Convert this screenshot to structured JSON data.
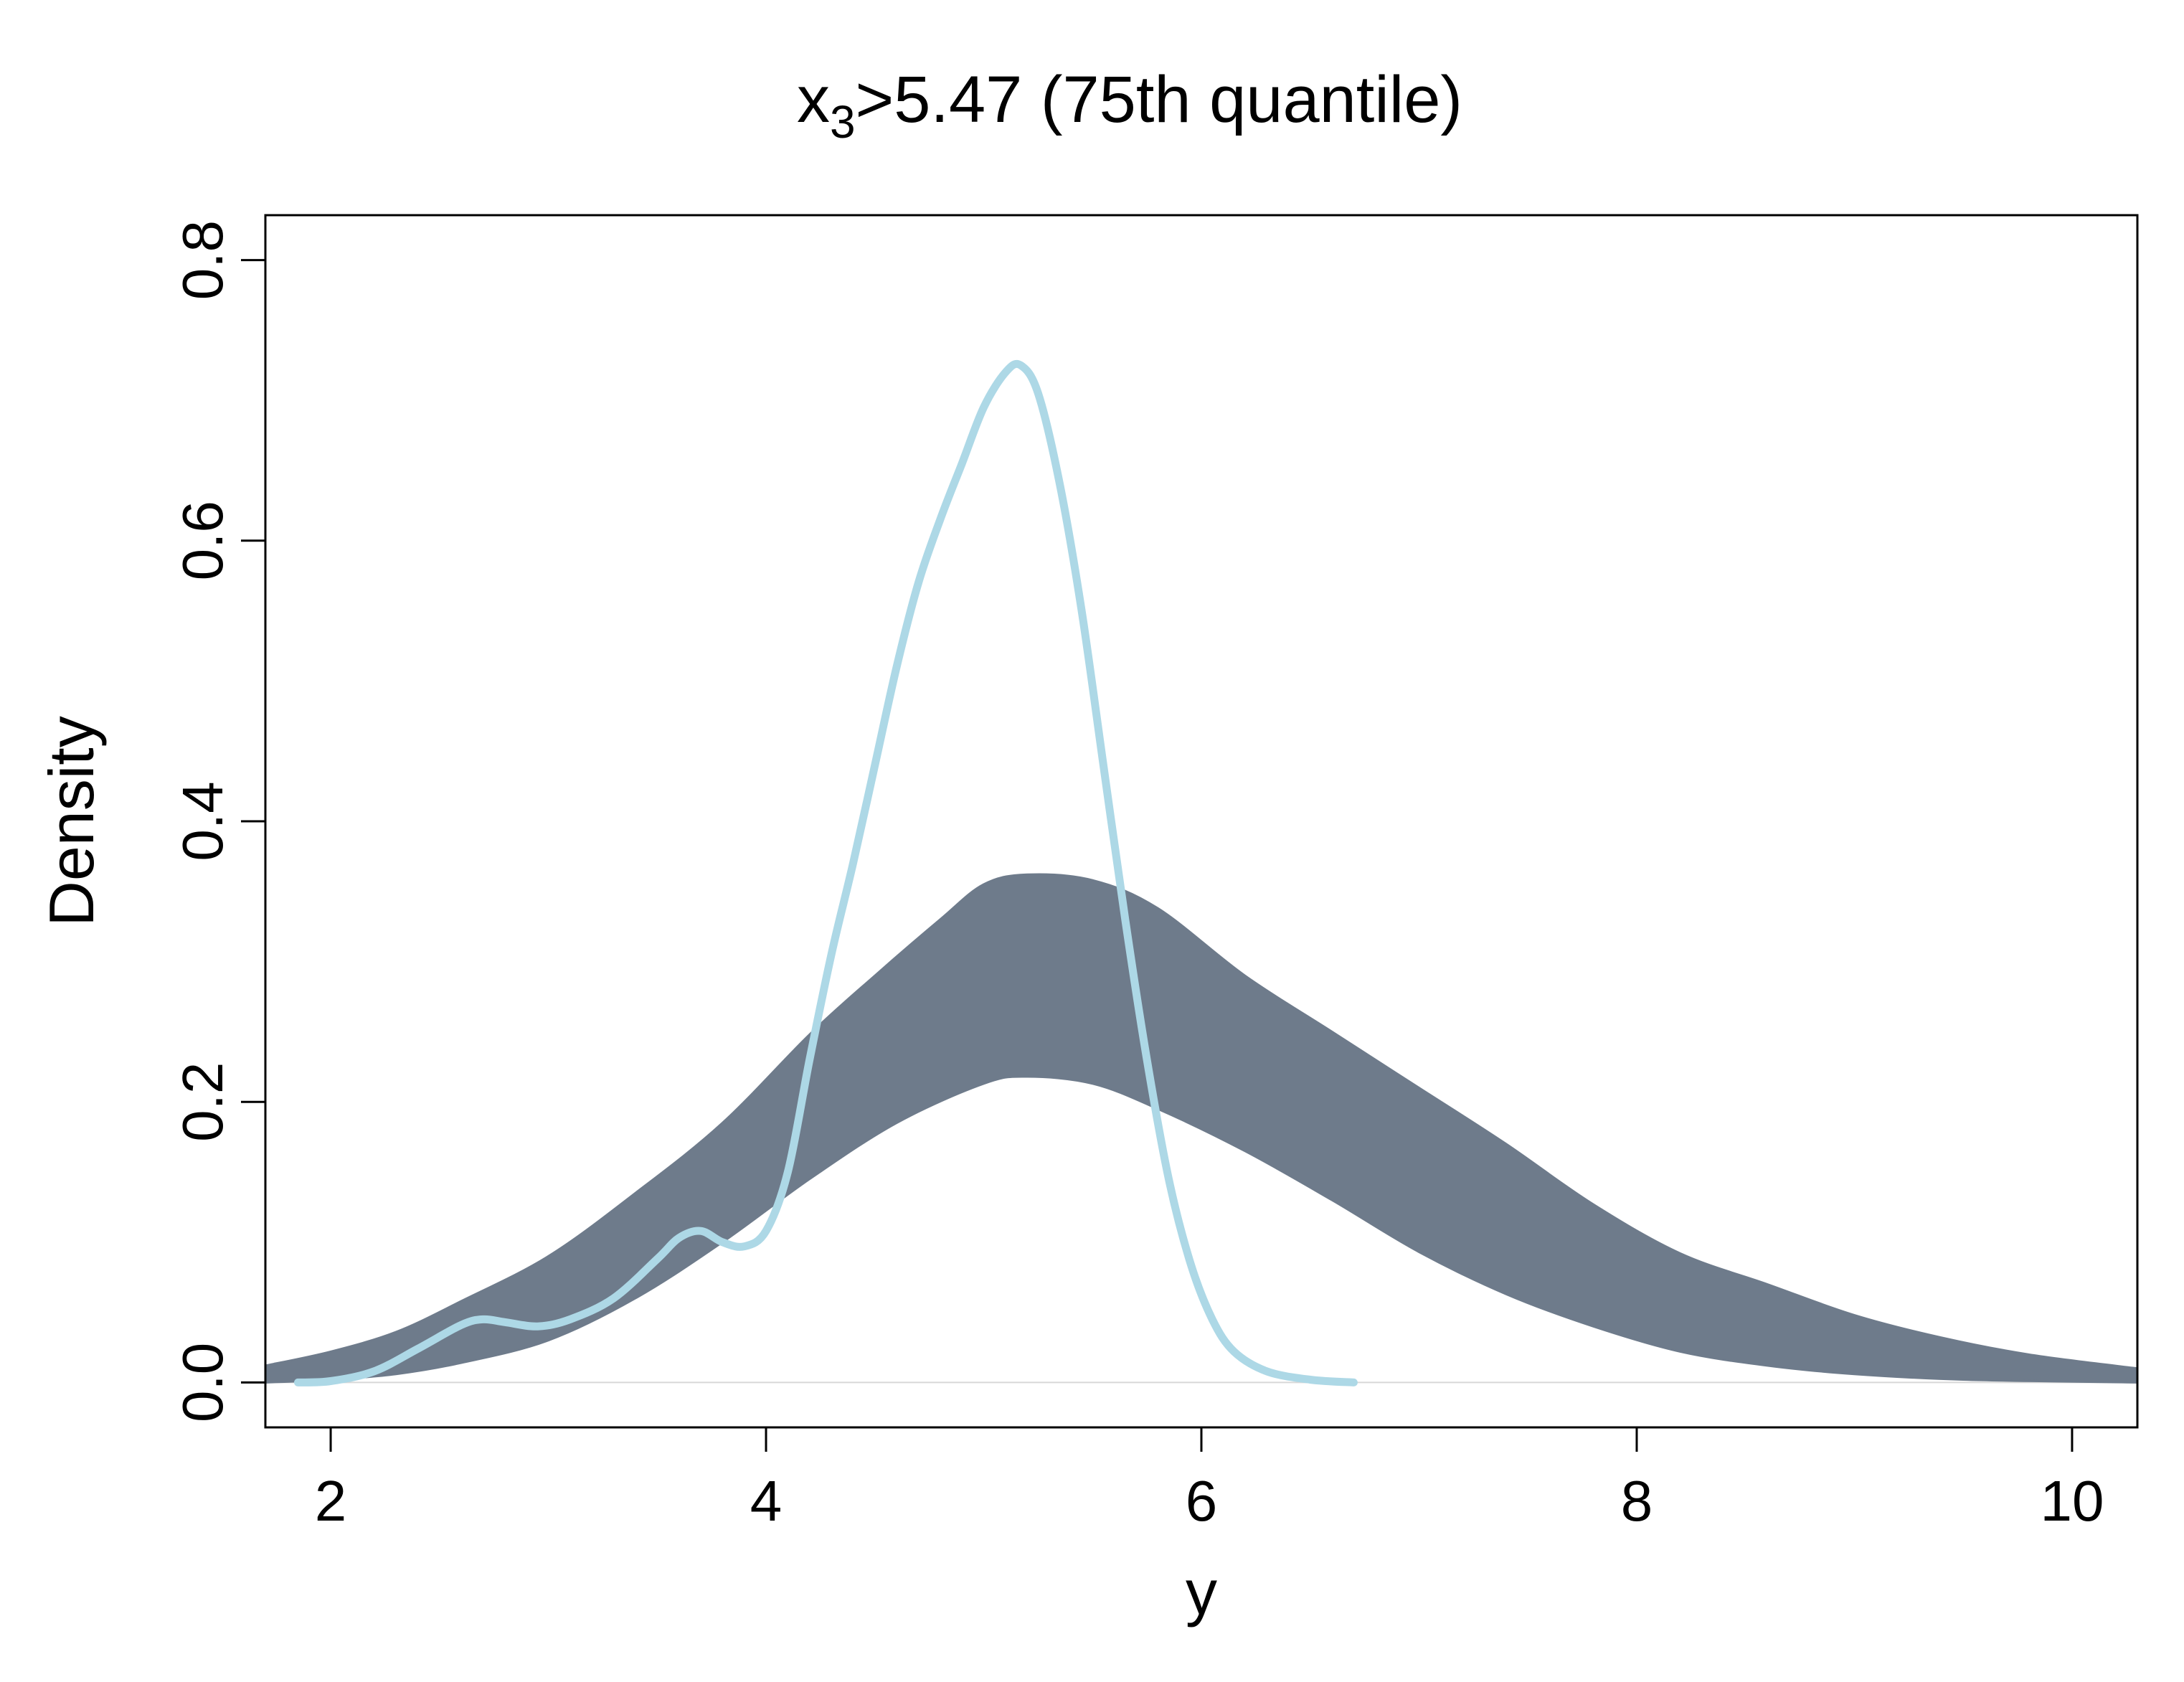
{
  "chart_data": {
    "type": "line",
    "title": {
      "main": "x",
      "subscript": "3",
      "rest": ">5.47 (75th quantile)"
    },
    "xlabel": "y",
    "ylabel": "Density",
    "xlim": [
      1.7,
      10.3
    ],
    "ylim": [
      -0.032,
      0.832
    ],
    "x_ticks": [
      2,
      4,
      6,
      8,
      10
    ],
    "y_ticks": [
      0.0,
      0.2,
      0.4,
      0.6,
      0.8
    ],
    "x_tick_labels": [
      "2",
      "4",
      "6",
      "8",
      "10"
    ],
    "y_tick_labels": [
      "0.0",
      "0.2",
      "0.4",
      "0.6",
      "0.8"
    ],
    "grid": false,
    "series": [
      {
        "role": "replicated densities (band)",
        "color": "#6e7b8b",
        "upper": [
          [
            1.7,
            0.012
          ],
          [
            2.0,
            0.022
          ],
          [
            2.3,
            0.036
          ],
          [
            2.6,
            0.058
          ],
          [
            3.0,
            0.09
          ],
          [
            3.4,
            0.135
          ],
          [
            3.8,
            0.185
          ],
          [
            4.2,
            0.248
          ],
          [
            4.5,
            0.29
          ],
          [
            4.8,
            0.33
          ],
          [
            5.0,
            0.355
          ],
          [
            5.2,
            0.362
          ],
          [
            5.5,
            0.358
          ],
          [
            5.8,
            0.338
          ],
          [
            6.2,
            0.29
          ],
          [
            6.6,
            0.25
          ],
          [
            7.0,
            0.21
          ],
          [
            7.4,
            0.17
          ],
          [
            7.8,
            0.127
          ],
          [
            8.2,
            0.092
          ],
          [
            8.6,
            0.07
          ],
          [
            9.0,
            0.048
          ],
          [
            9.4,
            0.032
          ],
          [
            9.8,
            0.02
          ],
          [
            10.3,
            0.01
          ]
        ],
        "lower": [
          [
            1.7,
            0.0
          ],
          [
            2.0,
            0.002
          ],
          [
            2.3,
            0.006
          ],
          [
            2.6,
            0.014
          ],
          [
            3.0,
            0.03
          ],
          [
            3.4,
            0.06
          ],
          [
            3.8,
            0.1
          ],
          [
            4.2,
            0.145
          ],
          [
            4.6,
            0.185
          ],
          [
            5.0,
            0.213
          ],
          [
            5.2,
            0.218
          ],
          [
            5.5,
            0.213
          ],
          [
            5.8,
            0.195
          ],
          [
            6.2,
            0.165
          ],
          [
            6.6,
            0.13
          ],
          [
            7.0,
            0.093
          ],
          [
            7.4,
            0.063
          ],
          [
            7.8,
            0.04
          ],
          [
            8.2,
            0.022
          ],
          [
            8.6,
            0.012
          ],
          [
            9.0,
            0.006
          ],
          [
            9.5,
            0.002
          ],
          [
            10.3,
            0.0
          ]
        ]
      },
      {
        "role": "observed density",
        "color": "#add8e6",
        "x": [
          1.85,
          2.0,
          2.2,
          2.4,
          2.6,
          2.7,
          2.8,
          2.95,
          3.1,
          3.3,
          3.5,
          3.6,
          3.7,
          3.8,
          3.9,
          4.0,
          4.1,
          4.2,
          4.3,
          4.4,
          4.5,
          4.6,
          4.7,
          4.8,
          4.9,
          5.0,
          5.1,
          5.17,
          5.25,
          5.35,
          5.45,
          5.55,
          5.65,
          5.75,
          5.85,
          5.95,
          6.05,
          6.15,
          6.3,
          6.5,
          6.7
        ],
        "y": [
          0.0,
          0.001,
          0.008,
          0.024,
          0.041,
          0.045,
          0.043,
          0.04,
          0.045,
          0.06,
          0.088,
          0.103,
          0.108,
          0.1,
          0.097,
          0.108,
          0.15,
          0.23,
          0.305,
          0.37,
          0.44,
          0.51,
          0.57,
          0.615,
          0.655,
          0.695,
          0.72,
          0.725,
          0.705,
          0.64,
          0.55,
          0.44,
          0.33,
          0.23,
          0.145,
          0.085,
          0.045,
          0.022,
          0.008,
          0.002,
          0.0
        ]
      }
    ]
  }
}
